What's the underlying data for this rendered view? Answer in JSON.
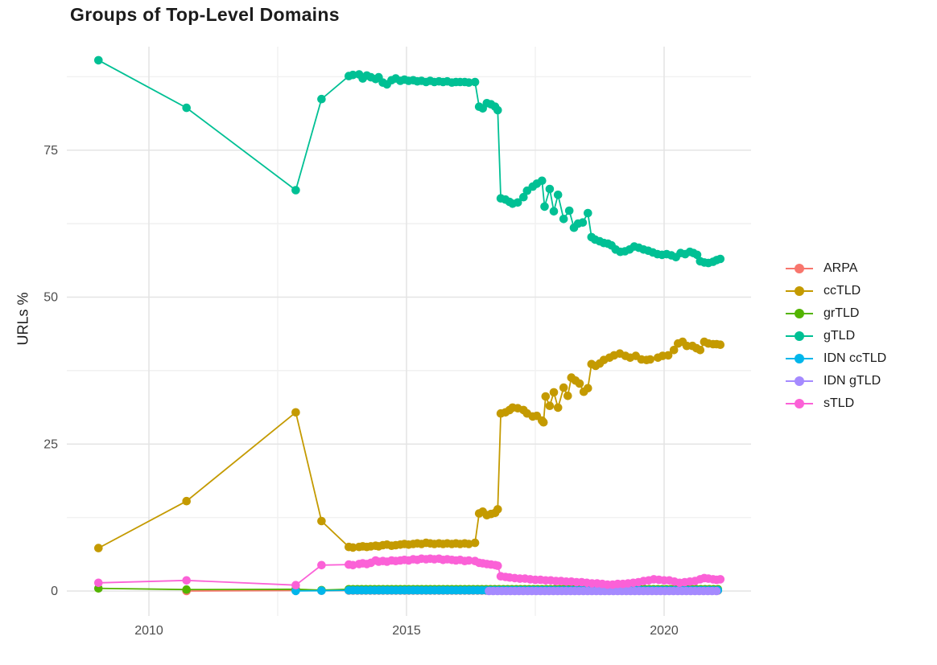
{
  "title": "Groups of Top-Level Domains",
  "axes": {
    "y_label": "URLs %",
    "x_tick_labels": [
      "2010",
      "2015",
      "2020"
    ],
    "y_tick_labels": [
      "0",
      "25",
      "50",
      "75"
    ]
  },
  "legend": {
    "items": [
      "ARPA",
      "ccTLD",
      "grTLD",
      "gTLD",
      "IDN ccTLD",
      "IDN gTLD",
      "sTLD"
    ]
  },
  "style_colors": {
    "text_dark": "#1c1c1c",
    "tick_text": "#4d4d4d",
    "grid_major": "#e4e4e4",
    "grid_minor": "#f1f1f1",
    "background": "#ffffff"
  },
  "chart_data": {
    "type": "line",
    "title": "Groups of Top-Level Domains",
    "xlabel": "",
    "ylabel": "URLs %",
    "xlim": [
      2008.4,
      2021.7
    ],
    "ylim": [
      -4,
      93
    ],
    "x_major_ticks": [
      2010,
      2015,
      2020
    ],
    "x_minor_gridlines": [
      2012.5,
      2017.5
    ],
    "y_major_ticks": [
      0,
      25,
      50,
      75
    ],
    "y_minor_gridlines": [
      12.5,
      37.5,
      62.5,
      87.5
    ],
    "grid": true,
    "legend_position": "right",
    "marker_radius": 5.3,
    "line_width": 1.8,
    "series": [
      {
        "name": "ARPA",
        "color": "#F8766D",
        "points": [
          [
            2010.73,
            0.0
          ],
          [
            2012.85,
            0.1
          ],
          [
            2013.35,
            0.05
          ]
        ],
        "flat_run": {
          "from": 2013.88,
          "to": 2021.09,
          "step": 0.0833,
          "value": 0.08
        }
      },
      {
        "name": "ccTLD",
        "color": "#C49A00",
        "points": [
          [
            2009.02,
            7.3
          ],
          [
            2010.73,
            15.3
          ],
          [
            2012.85,
            30.4
          ],
          [
            2013.35,
            11.9
          ],
          [
            2013.88,
            7.5
          ],
          [
            2013.96,
            7.4
          ],
          [
            2014.08,
            7.5
          ],
          [
            2014.15,
            7.6
          ],
          [
            2014.23,
            7.5
          ],
          [
            2014.31,
            7.6
          ],
          [
            2014.4,
            7.7
          ],
          [
            2014.46,
            7.6
          ],
          [
            2014.54,
            7.8
          ],
          [
            2014.62,
            7.9
          ],
          [
            2014.71,
            7.7
          ],
          [
            2014.79,
            7.8
          ],
          [
            2014.88,
            7.9
          ],
          [
            2014.96,
            8.0
          ],
          [
            2015.04,
            7.9
          ],
          [
            2015.13,
            8.0
          ],
          [
            2015.21,
            8.1
          ],
          [
            2015.29,
            8.0
          ],
          [
            2015.38,
            8.2
          ],
          [
            2015.46,
            8.1
          ],
          [
            2015.54,
            8.0
          ],
          [
            2015.63,
            8.1
          ],
          [
            2015.71,
            8.0
          ],
          [
            2015.79,
            8.1
          ],
          [
            2015.88,
            8.0
          ],
          [
            2015.96,
            8.1
          ],
          [
            2016.04,
            8.0
          ],
          [
            2016.13,
            8.1
          ],
          [
            2016.21,
            8.0
          ],
          [
            2016.33,
            8.2
          ],
          [
            2016.41,
            13.2
          ],
          [
            2016.48,
            13.5
          ],
          [
            2016.56,
            12.9
          ],
          [
            2016.64,
            13.1
          ],
          [
            2016.72,
            13.3
          ],
          [
            2016.77,
            13.9
          ],
          [
            2016.83,
            30.2
          ],
          [
            2016.92,
            30.4
          ],
          [
            2017.0,
            30.8
          ],
          [
            2017.06,
            31.2
          ],
          [
            2017.16,
            31.1
          ],
          [
            2017.27,
            30.8
          ],
          [
            2017.34,
            30.2
          ],
          [
            2017.45,
            29.7
          ],
          [
            2017.53,
            29.8
          ],
          [
            2017.63,
            29.0
          ],
          [
            2017.66,
            28.7
          ],
          [
            2017.7,
            33.1
          ],
          [
            2017.78,
            31.5
          ],
          [
            2017.86,
            33.8
          ],
          [
            2017.94,
            31.2
          ],
          [
            2018.05,
            34.6
          ],
          [
            2018.13,
            33.2
          ],
          [
            2018.2,
            36.3
          ],
          [
            2018.28,
            35.8
          ],
          [
            2018.36,
            35.3
          ],
          [
            2018.44,
            33.9
          ],
          [
            2018.52,
            34.5
          ],
          [
            2018.59,
            38.6
          ],
          [
            2018.67,
            38.3
          ],
          [
            2018.75,
            38.7
          ],
          [
            2018.83,
            39.3
          ],
          [
            2018.94,
            39.7
          ],
          [
            2019.03,
            40.1
          ],
          [
            2019.14,
            40.4
          ],
          [
            2019.25,
            40.0
          ],
          [
            2019.34,
            39.7
          ],
          [
            2019.45,
            40.0
          ],
          [
            2019.56,
            39.4
          ],
          [
            2019.66,
            39.3
          ],
          [
            2019.73,
            39.4
          ],
          [
            2019.88,
            39.7
          ],
          [
            2019.97,
            40.0
          ],
          [
            2020.08,
            40.1
          ],
          [
            2020.19,
            41.0
          ],
          [
            2020.27,
            42.1
          ],
          [
            2020.36,
            42.4
          ],
          [
            2020.44,
            41.7
          ],
          [
            2020.55,
            41.7
          ],
          [
            2020.63,
            41.3
          ],
          [
            2020.7,
            41.0
          ],
          [
            2020.78,
            42.4
          ],
          [
            2020.86,
            42.1
          ],
          [
            2020.95,
            42.0
          ],
          [
            2021.02,
            42.0
          ],
          [
            2021.09,
            41.9
          ]
        ]
      },
      {
        "name": "grTLD",
        "color": "#53B400",
        "points": [
          [
            2009.02,
            0.45
          ],
          [
            2010.73,
            0.25
          ],
          [
            2012.85,
            0.3
          ],
          [
            2013.35,
            0.15
          ]
        ],
        "flat_run": {
          "from": 2013.88,
          "to": 2021.09,
          "step": 0.0833,
          "value": 0.3
        }
      },
      {
        "name": "gTLD",
        "color": "#00C094",
        "points": [
          [
            2009.02,
            90.3
          ],
          [
            2010.73,
            82.2
          ],
          [
            2012.85,
            68.2
          ],
          [
            2013.35,
            83.7
          ],
          [
            2013.88,
            87.6
          ],
          [
            2013.96,
            87.8
          ],
          [
            2014.08,
            87.9
          ],
          [
            2014.15,
            87.2
          ],
          [
            2014.23,
            87.7
          ],
          [
            2014.31,
            87.4
          ],
          [
            2014.4,
            87.1
          ],
          [
            2014.46,
            87.4
          ],
          [
            2014.54,
            86.5
          ],
          [
            2014.62,
            86.2
          ],
          [
            2014.71,
            86.9
          ],
          [
            2014.79,
            87.2
          ],
          [
            2014.88,
            86.8
          ],
          [
            2014.96,
            87.0
          ],
          [
            2015.04,
            86.8
          ],
          [
            2015.13,
            86.9
          ],
          [
            2015.21,
            86.7
          ],
          [
            2015.29,
            86.8
          ],
          [
            2015.38,
            86.6
          ],
          [
            2015.46,
            86.8
          ],
          [
            2015.54,
            86.6
          ],
          [
            2015.63,
            86.7
          ],
          [
            2015.71,
            86.6
          ],
          [
            2015.79,
            86.7
          ],
          [
            2015.88,
            86.5
          ],
          [
            2015.96,
            86.6
          ],
          [
            2016.04,
            86.6
          ],
          [
            2016.13,
            86.6
          ],
          [
            2016.21,
            86.5
          ],
          [
            2016.33,
            86.6
          ],
          [
            2016.41,
            82.4
          ],
          [
            2016.48,
            82.1
          ],
          [
            2016.56,
            83.0
          ],
          [
            2016.64,
            82.8
          ],
          [
            2016.72,
            82.4
          ],
          [
            2016.77,
            81.8
          ],
          [
            2016.83,
            66.8
          ],
          [
            2016.92,
            66.6
          ],
          [
            2017.0,
            66.2
          ],
          [
            2017.06,
            65.9
          ],
          [
            2017.16,
            66.1
          ],
          [
            2017.27,
            67.0
          ],
          [
            2017.34,
            68.1
          ],
          [
            2017.45,
            68.8
          ],
          [
            2017.53,
            69.3
          ],
          [
            2017.63,
            69.8
          ],
          [
            2017.68,
            65.4
          ],
          [
            2017.78,
            68.4
          ],
          [
            2017.86,
            64.6
          ],
          [
            2017.94,
            67.4
          ],
          [
            2018.05,
            63.3
          ],
          [
            2018.16,
            64.7
          ],
          [
            2018.25,
            61.8
          ],
          [
            2018.33,
            62.5
          ],
          [
            2018.42,
            62.7
          ],
          [
            2018.52,
            64.3
          ],
          [
            2018.59,
            60.2
          ],
          [
            2018.66,
            59.8
          ],
          [
            2018.75,
            59.5
          ],
          [
            2018.83,
            59.2
          ],
          [
            2018.91,
            59.1
          ],
          [
            2018.98,
            58.8
          ],
          [
            2019.06,
            58.1
          ],
          [
            2019.15,
            57.7
          ],
          [
            2019.24,
            57.8
          ],
          [
            2019.33,
            58.1
          ],
          [
            2019.42,
            58.6
          ],
          [
            2019.51,
            58.4
          ],
          [
            2019.6,
            58.1
          ],
          [
            2019.69,
            57.9
          ],
          [
            2019.78,
            57.6
          ],
          [
            2019.87,
            57.3
          ],
          [
            2019.96,
            57.2
          ],
          [
            2020.05,
            57.3
          ],
          [
            2020.14,
            57.1
          ],
          [
            2020.23,
            56.8
          ],
          [
            2020.32,
            57.5
          ],
          [
            2020.41,
            57.3
          ],
          [
            2020.5,
            57.7
          ],
          [
            2020.57,
            57.5
          ],
          [
            2020.64,
            57.2
          ],
          [
            2020.7,
            56.1
          ],
          [
            2020.78,
            55.9
          ],
          [
            2020.86,
            55.8
          ],
          [
            2020.95,
            56.0
          ],
          [
            2021.02,
            56.3
          ],
          [
            2021.09,
            56.5
          ]
        ]
      },
      {
        "name": "IDN ccTLD",
        "color": "#00B6EB",
        "points": [
          [
            2012.85,
            0.02
          ],
          [
            2013.35,
            0.05
          ]
        ],
        "flat_run": {
          "from": 2013.88,
          "to": 2021.09,
          "step": 0.0833,
          "value": 0.12
        }
      },
      {
        "name": "IDN gTLD",
        "color": "#A58AFF",
        "points": [],
        "flat_run": {
          "from": 2016.6,
          "to": 2021.09,
          "step": 0.0833,
          "value": 0.0
        }
      },
      {
        "name": "sTLD",
        "color": "#FB61D7",
        "points": [
          [
            2009.02,
            1.4
          ],
          [
            2010.73,
            1.8
          ],
          [
            2012.85,
            1.0
          ],
          [
            2013.35,
            4.4
          ],
          [
            2013.88,
            4.5
          ],
          [
            2013.96,
            4.4
          ],
          [
            2014.08,
            4.6
          ],
          [
            2014.15,
            4.7
          ],
          [
            2014.23,
            4.6
          ],
          [
            2014.31,
            4.8
          ],
          [
            2014.4,
            5.2
          ],
          [
            2014.46,
            5.0
          ],
          [
            2014.54,
            5.1
          ],
          [
            2014.62,
            5.0
          ],
          [
            2014.71,
            5.2
          ],
          [
            2014.79,
            5.1
          ],
          [
            2014.88,
            5.2
          ],
          [
            2014.96,
            5.3
          ],
          [
            2015.04,
            5.2
          ],
          [
            2015.13,
            5.4
          ],
          [
            2015.21,
            5.3
          ],
          [
            2015.29,
            5.5
          ],
          [
            2015.38,
            5.4
          ],
          [
            2015.46,
            5.5
          ],
          [
            2015.54,
            5.4
          ],
          [
            2015.63,
            5.5
          ],
          [
            2015.71,
            5.3
          ],
          [
            2015.79,
            5.4
          ],
          [
            2015.88,
            5.3
          ],
          [
            2015.96,
            5.2
          ],
          [
            2016.04,
            5.3
          ],
          [
            2016.13,
            5.1
          ],
          [
            2016.21,
            5.2
          ],
          [
            2016.33,
            5.1
          ],
          [
            2016.41,
            4.8
          ],
          [
            2016.48,
            4.7
          ],
          [
            2016.56,
            4.6
          ],
          [
            2016.64,
            4.5
          ],
          [
            2016.72,
            4.4
          ],
          [
            2016.77,
            4.3
          ],
          [
            2016.83,
            2.5
          ],
          [
            2016.92,
            2.4
          ],
          [
            2017.0,
            2.3
          ],
          [
            2017.1,
            2.2
          ],
          [
            2017.2,
            2.1
          ],
          [
            2017.3,
            2.1
          ],
          [
            2017.4,
            2.0
          ],
          [
            2017.5,
            1.9
          ],
          [
            2017.6,
            1.9
          ],
          [
            2017.7,
            1.8
          ],
          [
            2017.8,
            1.8
          ],
          [
            2017.9,
            1.7
          ],
          [
            2018.0,
            1.7
          ],
          [
            2018.1,
            1.6
          ],
          [
            2018.2,
            1.6
          ],
          [
            2018.3,
            1.5
          ],
          [
            2018.4,
            1.5
          ],
          [
            2018.5,
            1.4
          ],
          [
            2018.6,
            1.3
          ],
          [
            2018.7,
            1.3
          ],
          [
            2018.8,
            1.2
          ],
          [
            2018.9,
            1.1
          ],
          [
            2019.0,
            1.1
          ],
          [
            2019.1,
            1.2
          ],
          [
            2019.2,
            1.2
          ],
          [
            2019.3,
            1.3
          ],
          [
            2019.4,
            1.4
          ],
          [
            2019.5,
            1.5
          ],
          [
            2019.6,
            1.7
          ],
          [
            2019.7,
            1.8
          ],
          [
            2019.8,
            2.0
          ],
          [
            2019.9,
            1.9
          ],
          [
            2020.0,
            1.8
          ],
          [
            2020.1,
            1.8
          ],
          [
            2020.2,
            1.6
          ],
          [
            2020.3,
            1.4
          ],
          [
            2020.4,
            1.5
          ],
          [
            2020.5,
            1.6
          ],
          [
            2020.6,
            1.7
          ],
          [
            2020.7,
            2.0
          ],
          [
            2020.78,
            2.2
          ],
          [
            2020.86,
            2.1
          ],
          [
            2020.95,
            2.0
          ],
          [
            2021.02,
            1.9
          ],
          [
            2021.09,
            2.0
          ]
        ]
      }
    ]
  }
}
